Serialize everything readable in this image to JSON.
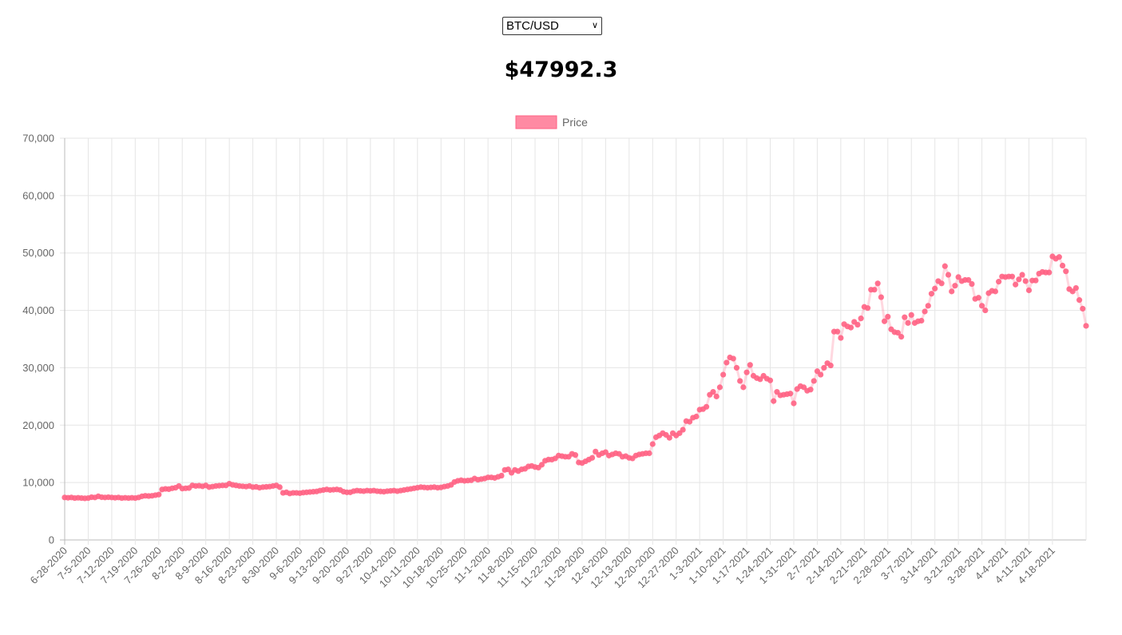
{
  "selector": {
    "value": "BTC/USD",
    "options": [
      "BTC/USD"
    ]
  },
  "price_display": "$47992.3",
  "colors": {
    "series": "#ff6384",
    "series_fill": "rgba(255,99,132,0.5)",
    "grid": "#e5e5e5",
    "tick": "#666666"
  },
  "chart_data": {
    "type": "line",
    "title": "",
    "xlabel": "",
    "ylabel": "",
    "ylim": [
      0,
      70000
    ],
    "yticks": [
      0,
      10000,
      20000,
      30000,
      40000,
      50000,
      60000,
      70000
    ],
    "ytick_labels": [
      "0",
      "10,000",
      "20,000",
      "30,000",
      "40,000",
      "50,000",
      "60,000",
      "70,000"
    ],
    "legend": {
      "position": "top",
      "entries": [
        "Price"
      ]
    },
    "grid": true,
    "x_start": "6-28-2020",
    "x_tick_labels": [
      "6-28-2020",
      "7-5-2020",
      "7-12-2020",
      "7-19-2020",
      "7-26-2020",
      "8-2-2020",
      "8-9-2020",
      "8-16-2020",
      "8-23-2020",
      "8-30-2020",
      "9-6-2020",
      "9-13-2020",
      "9-20-2020",
      "9-27-2020",
      "10-4-2020",
      "10-11-2020",
      "10-18-2020",
      "10-25-2020",
      "11-1-2020",
      "11-8-2020",
      "11-15-2020",
      "11-22-2020",
      "11-29-2020",
      "12-6-2020",
      "12-13-2020",
      "12-20-2020",
      "12-27-2020",
      "1-3-2021",
      "1-10-2021",
      "1-17-2021",
      "1-24-2021",
      "1-31-2021",
      "2-7-2021",
      "2-14-2021",
      "2-21-2021",
      "2-28-2021",
      "3-7-2021",
      "3-14-2021",
      "3-21-2021",
      "3-28-2021",
      "4-4-2021",
      "4-11-2021",
      "4-18-2021"
    ],
    "series": [
      {
        "name": "Price",
        "values": [
          7400,
          7350,
          7400,
          7300,
          7350,
          7300,
          7250,
          7300,
          7450,
          7400,
          7600,
          7450,
          7400,
          7450,
          7400,
          7350,
          7400,
          7300,
          7350,
          7300,
          7350,
          7300,
          7400,
          7600,
          7700,
          7650,
          7700,
          7800,
          7900,
          8800,
          8900,
          8850,
          9000,
          9100,
          9400,
          8950,
          9000,
          9050,
          9500,
          9400,
          9450,
          9350,
          9500,
          9200,
          9300,
          9400,
          9450,
          9500,
          9500,
          9800,
          9600,
          9500,
          9400,
          9350,
          9300,
          9400,
          9200,
          9250,
          9100,
          9200,
          9250,
          9300,
          9400,
          9500,
          9200,
          8200,
          8300,
          8100,
          8200,
          8200,
          8150,
          8250,
          8300,
          8350,
          8400,
          8450,
          8600,
          8700,
          8800,
          8700,
          8750,
          8800,
          8700,
          8400,
          8300,
          8300,
          8500,
          8600,
          8550,
          8500,
          8600,
          8550,
          8600,
          8500,
          8450,
          8400,
          8500,
          8550,
          8600,
          8500,
          8600,
          8700,
          8800,
          8900,
          9000,
          9100,
          9200,
          9150,
          9100,
          9150,
          9200,
          9100,
          9150,
          9300,
          9400,
          9600,
          10100,
          10300,
          10400,
          10300,
          10350,
          10400,
          10700,
          10500,
          10600,
          10700,
          10900,
          10900,
          10800,
          11000,
          11200,
          12200,
          12300,
          11700,
          12200,
          12000,
          12300,
          12400,
          12800,
          12900,
          12700,
          12600,
          13100,
          13800,
          14000,
          14000,
          14200,
          14700,
          14600,
          14500,
          14500,
          15000,
          14800,
          13500,
          13400,
          13700,
          14000,
          14300,
          15400,
          14800,
          15100,
          15300,
          14700,
          14900,
          15100,
          15000,
          14500,
          14600,
          14300,
          14200,
          14700,
          14900,
          15000,
          15100,
          15100,
          16700,
          17900,
          18200,
          18600,
          18300,
          17800,
          18600,
          18200,
          18600,
          19200,
          20700,
          20600,
          21300,
          21500,
          22700,
          22800,
          23200,
          25300,
          25800,
          25000,
          26600,
          28800,
          30900,
          31800,
          31600,
          30000,
          27700,
          26600,
          29200,
          30500,
          28600,
          28200,
          28000,
          28600,
          28100,
          27800,
          24200,
          25800,
          25200,
          25300,
          25400,
          25500,
          23800,
          26300,
          26800,
          26600,
          26000,
          26200,
          27700,
          29400,
          28800,
          30000,
          30800,
          30400,
          36300,
          36300,
          35200,
          37600,
          37200,
          37000,
          38000,
          37500,
          38600,
          40600,
          40400,
          43600,
          43600,
          44700,
          42300,
          38100,
          38900,
          36700,
          36200,
          36100,
          35400,
          38800,
          37800,
          39200,
          37800,
          38100,
          38200,
          39800,
          40800,
          42900,
          43800,
          45100,
          44700,
          47700,
          46200,
          43300,
          44300,
          45800,
          45100,
          45300,
          45300,
          44600,
          42000,
          42200,
          40800,
          40000,
          43000,
          43400,
          43300,
          45000,
          45900,
          45800,
          45900,
          45900,
          44500,
          45400,
          46200,
          45100,
          43500,
          45200,
          45200,
          46400,
          46700,
          46600,
          46600,
          49400,
          49000,
          49300,
          47800,
          46800,
          43700,
          43300,
          43900,
          41800,
          40300,
          37300
        ]
      }
    ]
  }
}
